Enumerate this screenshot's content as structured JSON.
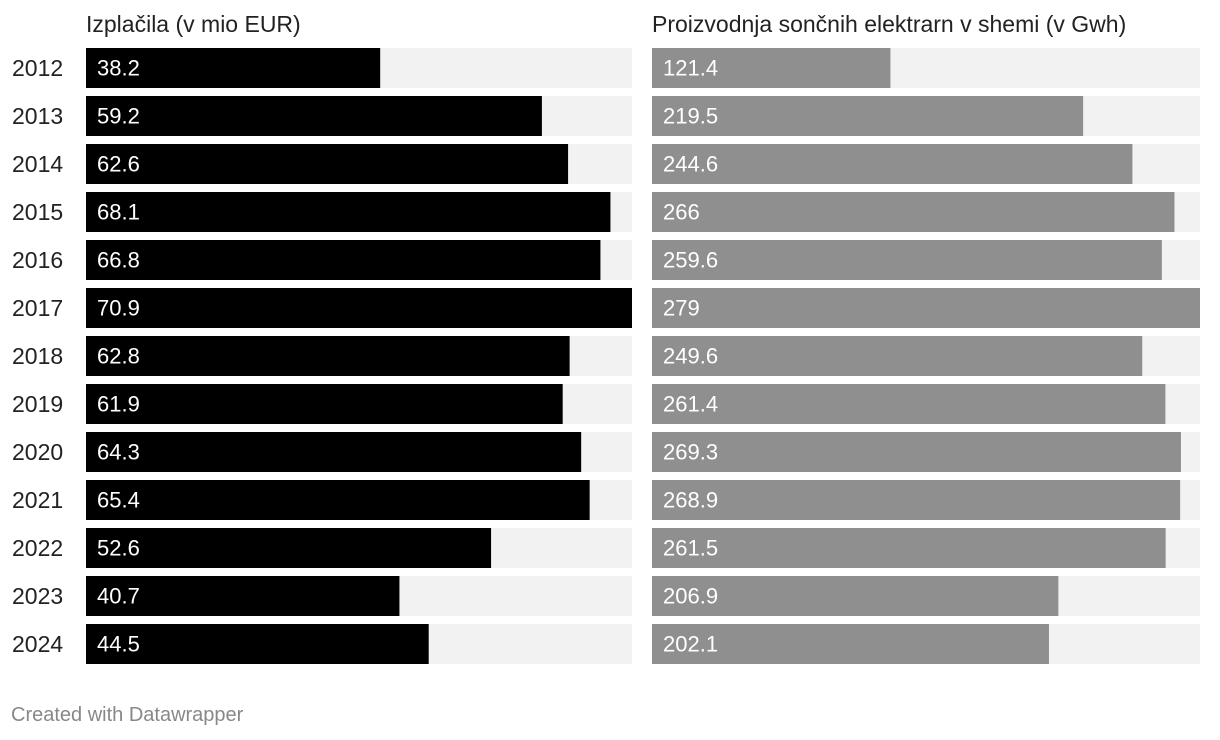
{
  "chart_data": {
    "type": "bar",
    "orientation": "horizontal",
    "categories": [
      "2012",
      "2013",
      "2014",
      "2015",
      "2016",
      "2017",
      "2018",
      "2019",
      "2020",
      "2021",
      "2022",
      "2023",
      "2024"
    ],
    "series": [
      {
        "name": "Izplačila (v mio EUR)",
        "values": [
          38.2,
          59.2,
          62.6,
          68.1,
          66.8,
          70.9,
          62.8,
          61.9,
          64.3,
          65.4,
          52.6,
          40.7,
          44.5
        ],
        "labels": [
          "38.2",
          "59.2",
          "62.6",
          "68.1",
          "66.8",
          "70.9",
          "62.8",
          "61.9",
          "64.3",
          "65.4",
          "52.6",
          "40.7",
          "44.5"
        ],
        "color": "#000000",
        "track_color": "#f2f2f2",
        "max": 70.9
      },
      {
        "name": "Proizvodnja sončnih elektrarn v shemi (v Gwh)",
        "values": [
          121.4,
          219.5,
          244.6,
          266,
          259.6,
          279,
          249.6,
          261.4,
          269.3,
          268.9,
          261.5,
          206.9,
          202.1
        ],
        "labels": [
          "121.4",
          "219.5",
          "244.6",
          "266",
          "259.6",
          "279",
          "249.6",
          "261.4",
          "269.3",
          "268.9",
          "261.5",
          "206.9",
          "202.1"
        ],
        "color": "#8f8f8f",
        "track_color": "#f2f2f2",
        "max": 279
      }
    ],
    "layout": "small-multiples",
    "grid": false
  },
  "footer": {
    "credit": "Created with Datawrapper"
  }
}
